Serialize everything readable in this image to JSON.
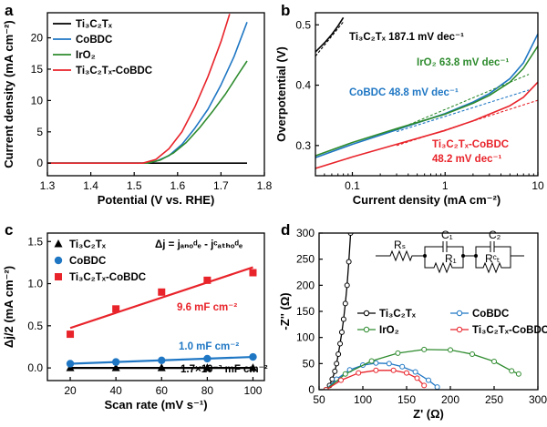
{
  "panels": [
    {
      "letter": "a"
    },
    {
      "letter": "b"
    },
    {
      "letter": "c"
    },
    {
      "letter": "d"
    }
  ],
  "chart_data": [
    {
      "panel": "a",
      "type": "line",
      "xlabel": "Potential (V vs. RHE)",
      "ylabel": "Current density (mA cm⁻²)",
      "xlim": [
        1.3,
        1.8
      ],
      "ylim": [
        -2,
        24
      ],
      "xticks": [
        "1.3",
        "1.4",
        "1.5",
        "1.6",
        "1.7",
        "1.8"
      ],
      "yticks": [
        "0",
        "5",
        "10",
        "15",
        "20"
      ],
      "legend_position": "top-left",
      "series": [
        {
          "name": "Ti₃C₂Tₓ",
          "color": "#000000",
          "x": [
            1.3,
            1.76
          ],
          "y": [
            0,
            0
          ]
        },
        {
          "name": "CoBDC",
          "color": "#1f77c4",
          "x": [
            1.3,
            1.52,
            1.55,
            1.58,
            1.61,
            1.64,
            1.67,
            1.7,
            1.73,
            1.76
          ],
          "y": [
            0,
            0,
            0.3,
            1.2,
            3.0,
            5.6,
            8.6,
            12.5,
            17.0,
            22.5
          ]
        },
        {
          "name": "IrO₂",
          "color": "#2e8b2e",
          "x": [
            1.3,
            1.53,
            1.56,
            1.59,
            1.62,
            1.65,
            1.68,
            1.71,
            1.74,
            1.76
          ],
          "y": [
            0,
            0,
            0.5,
            1.6,
            3.3,
            5.6,
            8.2,
            11.0,
            14.2,
            16.3
          ]
        },
        {
          "name": "Ti₃C₂Tₓ-CoBDC",
          "color": "#e8232a",
          "x": [
            1.3,
            1.52,
            1.55,
            1.58,
            1.61,
            1.64,
            1.67,
            1.7,
            1.72
          ],
          "y": [
            0,
            0,
            0.6,
            2.3,
            5.0,
            9.0,
            13.8,
            19.4,
            23.8
          ]
        }
      ]
    },
    {
      "panel": "b",
      "type": "line",
      "xlabel": "Current density (mA cm⁻²)",
      "ylabel": "Overpotential (V)",
      "xscale": "log",
      "xlim": [
        0.04,
        10
      ],
      "ylim": [
        0.25,
        0.52
      ],
      "xticks": [
        "0.1",
        "1",
        "10"
      ],
      "yticks": [
        "0.3",
        "0.4",
        "0.5"
      ],
      "annotations": [
        {
          "text": "Ti₃C₂Tₓ 187.1 mV dec⁻¹",
          "color": "#000000"
        },
        {
          "text": "IrO₂ 63.8 mV dec⁻¹",
          "color": "#2e8b2e"
        },
        {
          "text": "CoBDC 48.8 mV dec⁻¹",
          "color": "#1f77c4"
        },
        {
          "text": "Ti₃C₂Tₓ-CoBDC",
          "color": "#e8232a"
        },
        {
          "text": "48.2 mV dec⁻¹",
          "color": "#e8232a"
        }
      ],
      "series": [
        {
          "name": "Ti₃C₂Tₓ",
          "color": "#000000",
          "x": [
            0.04,
            0.05,
            0.06,
            0.07,
            0.08
          ],
          "y": [
            0.455,
            0.47,
            0.484,
            0.498,
            0.512
          ]
        },
        {
          "name": "CoBDC",
          "color": "#1f77c4",
          "x": [
            0.04,
            0.1,
            0.3,
            1,
            2,
            3,
            5,
            7,
            10
          ],
          "y": [
            0.28,
            0.302,
            0.326,
            0.353,
            0.372,
            0.386,
            0.411,
            0.437,
            0.485
          ]
        },
        {
          "name": "IrO₂",
          "color": "#2e8b2e",
          "x": [
            0.04,
            0.1,
            0.3,
            1,
            2,
            3,
            5,
            7,
            10
          ],
          "y": [
            0.283,
            0.305,
            0.328,
            0.352,
            0.37,
            0.383,
            0.405,
            0.428,
            0.465
          ]
        },
        {
          "name": "Ti₃C₂Tₓ-CoBDC",
          "color": "#e8232a",
          "x": [
            0.04,
            0.1,
            0.3,
            1,
            2,
            3,
            5,
            7,
            10
          ],
          "y": [
            0.262,
            0.281,
            0.302,
            0.325,
            0.341,
            0.352,
            0.366,
            0.38,
            0.405
          ]
        }
      ]
    },
    {
      "panel": "c",
      "type": "scatter",
      "xlabel": "Scan rate (mV s⁻¹)",
      "ylabel": "Δj/2 (mA cm⁻²)",
      "xlim": [
        10,
        105
      ],
      "ylim": [
        -0.15,
        1.6
      ],
      "xticks": [
        "20",
        "40",
        "60",
        "80",
        "100"
      ],
      "yticks": [
        "0.0",
        "0.5",
        "1.0",
        "1.5"
      ],
      "legend_position": "top-left",
      "equation": "Δj = jₐₙₒᵈₑ - jᶜₐₜₕₒᵈₑ",
      "series": [
        {
          "name": "Ti₃C₂Tₓ",
          "color": "#000000",
          "marker": "triangle",
          "x": [
            20,
            40,
            60,
            80,
            100
          ],
          "y": [
            0.0,
            0.0,
            0.0,
            0.0,
            0.0
          ],
          "fit_label": "1.7×10⁻² mF cm⁻²"
        },
        {
          "name": "CoBDC",
          "color": "#1f77c4",
          "marker": "circle",
          "x": [
            20,
            40,
            60,
            80,
            100
          ],
          "y": [
            0.05,
            0.07,
            0.09,
            0.11,
            0.13
          ],
          "fit_label": "1.0 mF cm⁻²"
        },
        {
          "name": "Ti₃C₂Tₓ-CoBDC",
          "color": "#e8232a",
          "marker": "square",
          "x": [
            20,
            40,
            60,
            80,
            100
          ],
          "y": [
            0.4,
            0.7,
            0.9,
            1.04,
            1.13
          ],
          "fit_label": "9.6 mF cm⁻²"
        }
      ]
    },
    {
      "panel": "d",
      "type": "scatter",
      "xlabel": "Z' (Ω)",
      "ylabel": "-Z'' (Ω)",
      "xlim": [
        50,
        300
      ],
      "ylim": [
        0,
        300
      ],
      "xticks": [
        "50",
        "100",
        "150",
        "200",
        "250",
        "300"
      ],
      "yticks": [
        "0",
        "50",
        "100",
        "150",
        "200",
        "250",
        "300"
      ],
      "legend_position": "center-right",
      "circuit_labels": [
        "Rₛ",
        "C₁",
        "R₁",
        "C₂",
        "Rᶜₜ"
      ],
      "series": [
        {
          "name": "Ti₃C₂Tₓ",
          "color": "#000000",
          "x": [
            58,
            62,
            65,
            68,
            70,
            72,
            74,
            76,
            78,
            80,
            82,
            84,
            86
          ],
          "y": [
            0,
            8,
            20,
            35,
            50,
            68,
            88,
            110,
            135,
            165,
            200,
            245,
            300
          ]
        },
        {
          "name": "CoBDC",
          "color": "#1f77c4",
          "x": [
            58,
            70,
            85,
            100,
            115,
            130,
            145,
            160,
            175,
            185
          ],
          "y": [
            0,
            20,
            38,
            47,
            51,
            50,
            44,
            34,
            18,
            5
          ]
        },
        {
          "name": "IrO₂",
          "color": "#2e8b2e",
          "x": [
            58,
            80,
            110,
            140,
            170,
            200,
            225,
            250,
            270,
            278
          ],
          "y": [
            0,
            30,
            55,
            70,
            77,
            76,
            68,
            54,
            36,
            30
          ]
        },
        {
          "name": "Ti₃C₂Tₓ-CoBDC",
          "color": "#e8232a",
          "x": [
            58,
            75,
            95,
            115,
            135,
            150,
            162,
            170
          ],
          "y": [
            0,
            18,
            32,
            37,
            37,
            32,
            22,
            8
          ]
        }
      ]
    }
  ]
}
